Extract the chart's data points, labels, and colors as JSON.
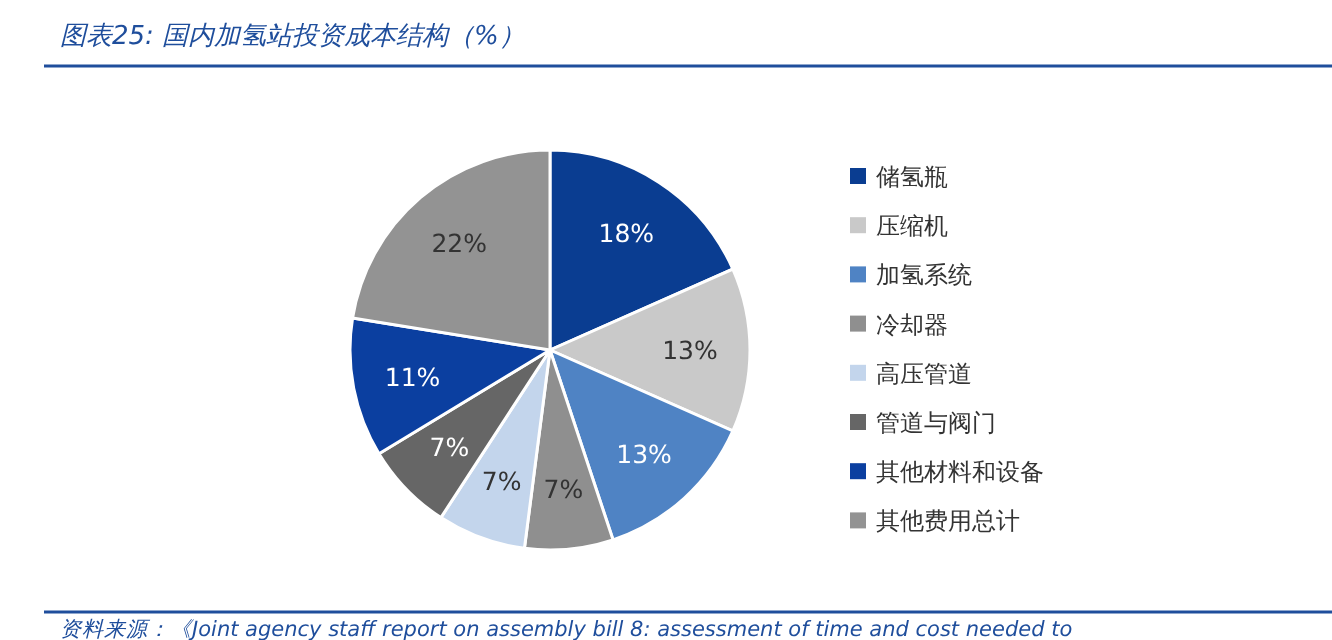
{
  "chart_data": {
    "type": "pie",
    "title": "图表25: 国内加氢站投资成本结构（%）",
    "categories": [
      "储氢瓶",
      "压缩机",
      "加氢系统",
      "冷却器",
      "高压管道",
      "管道与阀门",
      "其他材料和设备",
      "其他费用总计"
    ],
    "values": [
      18,
      13,
      13,
      7,
      7,
      7,
      11,
      22
    ],
    "colors": [
      "#0a3d91",
      "#c9c9c9",
      "#4f83c4",
      "#8f8f8f",
      "#c3d5ec",
      "#666666",
      "#0b3fa0",
      "#939393"
    ],
    "value_labels": [
      "18%",
      "13%",
      "13%",
      "7%",
      "7%",
      "7%",
      "11%",
      "22%"
    ],
    "legend": "right",
    "annotations": [
      "资料来源：《Joint agency staff report on assembly bill 8: assessment of time and cost needed to"
    ]
  }
}
